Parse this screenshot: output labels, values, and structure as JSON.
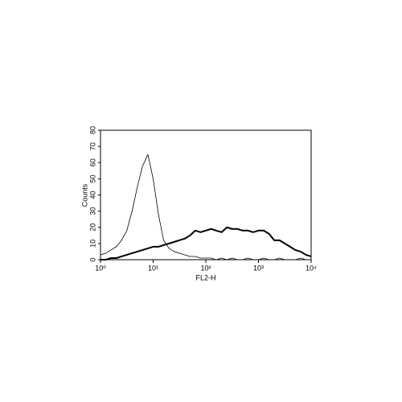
{
  "chart_data": {
    "type": "line",
    "x_label": "FL2-H",
    "y_label": "Counts",
    "xscale": "log",
    "xlim": [
      1,
      10000
    ],
    "xticks": [
      {
        "value": 1,
        "label": "10⁰"
      },
      {
        "value": 10,
        "label": "10¹"
      },
      {
        "value": 100,
        "label": "10²"
      },
      {
        "value": 1000,
        "label": "10³"
      },
      {
        "value": 10000,
        "label": "10⁴"
      }
    ],
    "ylim": [
      0,
      80
    ],
    "yticks": [
      0,
      10,
      20,
      30,
      40,
      50,
      60,
      70,
      80
    ],
    "x": [
      1,
      1.26,
      1.58,
      2,
      2.51,
      3.16,
      3.98,
      5.01,
      6.31,
      7.94,
      10,
      12.6,
      15.8,
      20,
      25.1,
      31.6,
      39.8,
      50.1,
      63.1,
      79.4,
      100,
      126,
      158,
      200,
      251,
      316,
      398,
      501,
      631,
      794,
      1000,
      1259,
      1585,
      1995,
      2512,
      3162,
      3981,
      5012,
      6310,
      7943,
      10000
    ],
    "series": [
      {
        "color": "#000000",
        "width": 0.8,
        "values": [
          3,
          4,
          6,
          8,
          12,
          18,
          30,
          45,
          58,
          65,
          50,
          28,
          12,
          7,
          5,
          4,
          3,
          2,
          2,
          1,
          1,
          1,
          0,
          1,
          0,
          1,
          0,
          0,
          1,
          0,
          0,
          1,
          0,
          0,
          1,
          0,
          0,
          0,
          1,
          0,
          0
        ]
      },
      {
        "color": "#000000",
        "width": 2,
        "values": [
          0,
          0,
          1,
          1,
          2,
          3,
          4,
          5,
          6,
          7,
          8,
          8,
          9,
          10,
          11,
          12,
          13,
          15,
          18,
          17,
          18,
          19,
          18,
          17,
          20,
          19,
          19,
          18,
          18,
          17,
          18,
          18,
          16,
          12,
          12,
          10,
          8,
          6,
          5,
          3,
          2
        ]
      }
    ]
  }
}
